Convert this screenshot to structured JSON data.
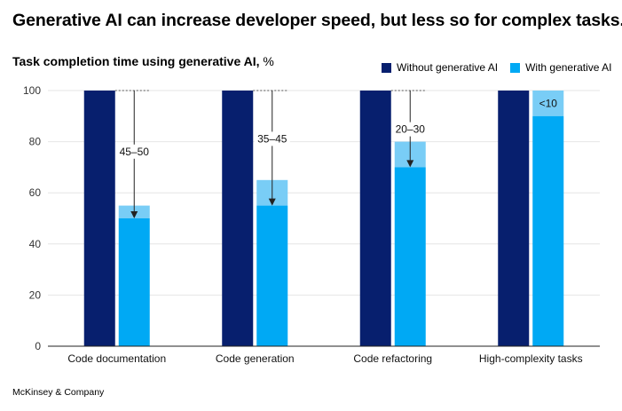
{
  "headline": "Generative AI can increase developer speed, but less so for complex tasks.",
  "source": "McKinsey & Company",
  "colors": {
    "without": "#071f6e",
    "with": "#00a9f4",
    "savings": "#79cdf6",
    "grid": "#e6e6e6",
    "axis": "#222222"
  },
  "chart_data": {
    "type": "bar",
    "title": "Task completion time using generative AI,",
    "title_unit": "%",
    "categories": [
      "Code documentation",
      "Code generation",
      "Code refactoring",
      "High-complexity tasks"
    ],
    "series": [
      {
        "name": "Without generative AI",
        "values": [
          100,
          100,
          100,
          100
        ]
      },
      {
        "name": "With generative AI",
        "values": [
          50,
          55,
          70,
          90
        ]
      }
    ],
    "savings_range_top": [
      55,
      65,
      80,
      100
    ],
    "savings_labels": [
      "45–50",
      "35–45",
      "20–30",
      "<10"
    ],
    "ylim": [
      0,
      100
    ],
    "yticks": [
      0,
      20,
      40,
      60,
      80,
      100
    ],
    "grid": true,
    "legend_position": "top-right"
  }
}
